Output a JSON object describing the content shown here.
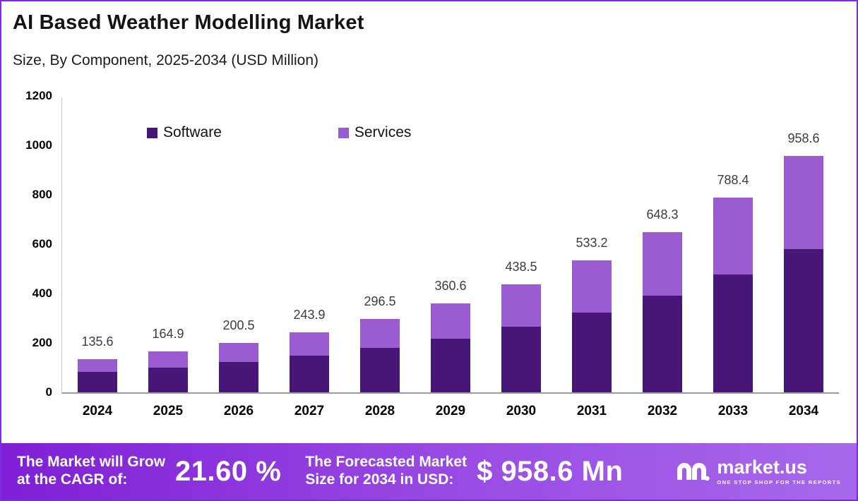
{
  "chart": {
    "title": "AI Based Weather Modelling Market",
    "subtitle": "Size, By Component, 2025-2034 (USD Million)"
  },
  "chart_data": {
    "type": "bar",
    "stacked": true,
    "title": "AI Based Weather Modelling Market",
    "subtitle": "Size, By Component, 2025-2034 (USD Million)",
    "categories": [
      "2024",
      "2025",
      "2026",
      "2027",
      "2028",
      "2029",
      "2030",
      "2031",
      "2032",
      "2033",
      "2034"
    ],
    "series": [
      {
        "name": "Software",
        "color": "#471677",
        "values": [
          82.0,
          100.0,
          121.5,
          147.5,
          179.5,
          218.0,
          265.0,
          322.5,
          392.0,
          477.0,
          580.0
        ]
      },
      {
        "name": "Services",
        "color": "#9a5cd0",
        "values": [
          53.6,
          64.9,
          79.0,
          96.4,
          117.0,
          142.6,
          173.5,
          210.7,
          256.3,
          311.4,
          378.6
        ]
      }
    ],
    "totals": [
      135.6,
      164.9,
      200.5,
      243.9,
      296.5,
      360.6,
      438.5,
      533.2,
      648.3,
      788.4,
      958.6
    ],
    "ylabel": "",
    "xlabel": "",
    "ylim": [
      0,
      1200
    ],
    "yticks": [
      0,
      200,
      400,
      600,
      800,
      1000,
      1200
    ],
    "grid": false,
    "legend_position": "top-inside"
  },
  "banner": {
    "cagr_label_line1": "The Market will Grow",
    "cagr_label_line2": "at the CAGR of:",
    "cagr_value": "21.60 %",
    "forecast_label_line1": "The Forecasted Market",
    "forecast_label_line2": "Size for 2034 in USD:",
    "forecast_value": "$ 958.6 Mn",
    "brand": "market.us",
    "brand_tagline": "ONE STOP SHOP FOR THE REPORTS"
  },
  "colors": {
    "software": "#471677",
    "services": "#9a5cd0",
    "banner_gradient_start": "#7f1fd6",
    "banner_gradient_end": "#a768ea",
    "frame_border": "#7d2ae8"
  }
}
